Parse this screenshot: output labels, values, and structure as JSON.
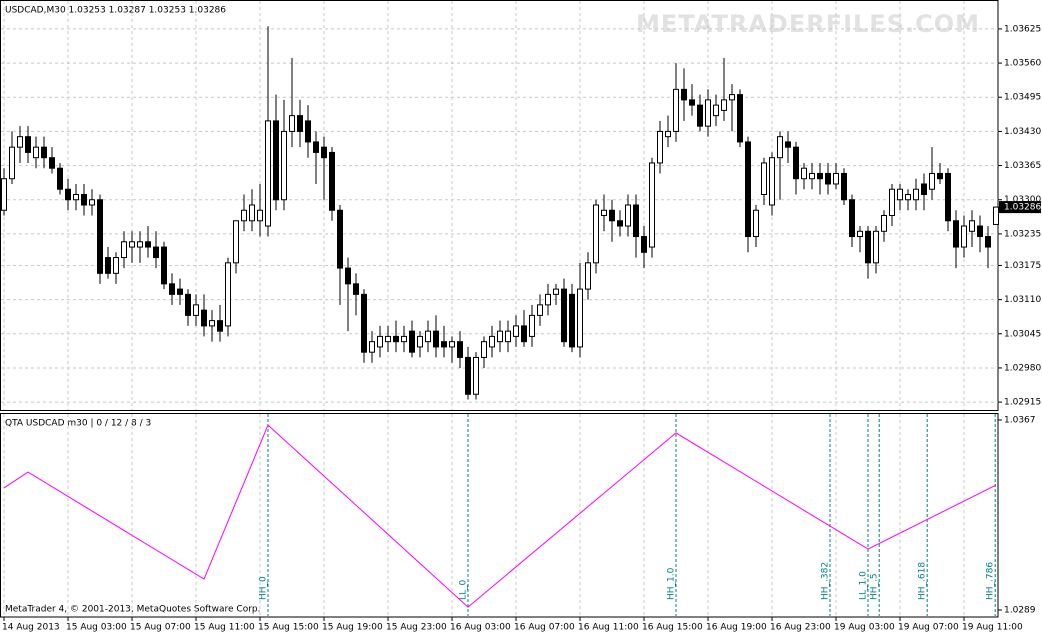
{
  "chart_data": [
    {
      "type": "candlestick",
      "title": "USDCAD,M30  1.03253 1.03287 1.03253 1.03286",
      "watermark": "METATRADERFILES.COM",
      "categories": [
        "14 Aug 2013",
        null,
        null,
        null,
        null,
        null,
        null,
        null,
        "15 Aug 03:00",
        null,
        null,
        null,
        null,
        null,
        null,
        null,
        "15 Aug 07:00",
        null,
        null,
        null,
        null,
        null,
        null,
        null,
        "15 Aug 11:00",
        null,
        null,
        null,
        null,
        null,
        null,
        null,
        "15 Aug 15:00",
        null,
        null,
        null,
        null,
        null,
        null,
        null,
        "15 Aug 19:00",
        null,
        null,
        null,
        null,
        null,
        null,
        null,
        "15 Aug 23:00",
        null,
        null,
        null,
        null,
        null,
        null,
        null,
        "16 Aug 03:00",
        null,
        null,
        null,
        null,
        null,
        null,
        null,
        "16 Aug 07:00",
        null,
        null,
        null,
        null,
        null,
        null,
        null,
        "16 Aug 11:00",
        null,
        null,
        null,
        null,
        null,
        null,
        null,
        "16 Aug 15:00",
        null,
        null,
        null,
        null,
        null,
        null,
        null,
        "16 Aug 19:00",
        null,
        null,
        null,
        null,
        null,
        null,
        null,
        "16 Aug 23:00",
        null,
        null,
        null,
        null,
        null,
        null,
        null,
        "19 Aug 03:00",
        null,
        null,
        null,
        null,
        null,
        null,
        null,
        "19 Aug 07:00",
        null,
        null,
        null,
        null,
        null,
        null,
        null,
        "19 Aug 11:00",
        null,
        null,
        null,
        null
      ],
      "ohlc": [
        [
          1.0328,
          1.0336,
          1.0327,
          1.0334
        ],
        [
          1.0334,
          1.0343,
          1.0333,
          1.034
        ],
        [
          1.034,
          1.0344,
          1.0337,
          1.0342
        ],
        [
          1.0342,
          1.0344,
          1.0337,
          1.0339
        ],
        [
          1.0338,
          1.0342,
          1.0336,
          1.034
        ],
        [
          1.034,
          1.0342,
          1.0336,
          1.0338
        ],
        [
          1.0338,
          1.034,
          1.0335,
          1.0336
        ],
        [
          1.0336,
          1.0337,
          1.0331,
          1.0332
        ],
        [
          1.0332,
          1.0334,
          1.0328,
          1.033
        ],
        [
          1.033,
          1.0333,
          1.0328,
          1.0331
        ],
        [
          1.0331,
          1.0333,
          1.0327,
          1.0329
        ],
        [
          1.0329,
          1.0332,
          1.0327,
          1.033
        ],
        [
          1.033,
          1.0331,
          1.0314,
          1.0316
        ],
        [
          1.0319,
          1.0321,
          1.0315,
          1.0316
        ],
        [
          1.0316,
          1.032,
          1.0314,
          1.0319
        ],
        [
          1.0319,
          1.0324,
          1.0317,
          1.0322
        ],
        [
          1.0321,
          1.0324,
          1.0318,
          1.0322
        ],
        [
          1.0321,
          1.0324,
          1.0318,
          1.0322
        ],
        [
          1.0322,
          1.0325,
          1.0319,
          1.0321
        ],
        [
          1.0321,
          1.0324,
          1.0317,
          1.0319
        ],
        [
          1.0321,
          1.0322,
          1.0313,
          1.0314
        ],
        [
          1.0314,
          1.0316,
          1.031,
          1.0312
        ],
        [
          1.0313,
          1.0315,
          1.031,
          1.0312
        ],
        [
          1.0312,
          1.0313,
          1.0306,
          1.0308
        ],
        [
          1.0308,
          1.0312,
          1.0306,
          1.031
        ],
        [
          1.0309,
          1.0312,
          1.0304,
          1.0306
        ],
        [
          1.0306,
          1.0309,
          1.0303,
          1.0307
        ],
        [
          1.0307,
          1.031,
          1.0303,
          1.0305
        ],
        [
          1.0306,
          1.0319,
          1.0304,
          1.0318
        ],
        [
          1.0318,
          1.0326,
          1.0316,
          1.0326
        ],
        [
          1.0326,
          1.0331,
          1.0324,
          1.0328
        ],
        [
          1.0326,
          1.0332,
          1.0324,
          1.0329
        ],
        [
          1.0326,
          1.0333,
          1.0323,
          1.0328
        ],
        [
          1.0325,
          1.0363,
          1.0323,
          1.0345
        ],
        [
          1.0345,
          1.035,
          1.0328,
          1.033
        ],
        [
          1.033,
          1.0349,
          1.0328,
          1.0343
        ],
        [
          1.0343,
          1.0357,
          1.034,
          1.0346
        ],
        [
          1.0346,
          1.0349,
          1.034,
          1.0343
        ],
        [
          1.0345,
          1.0348,
          1.0338,
          1.0341
        ],
        [
          1.0341,
          1.0343,
          1.0333,
          1.0339
        ],
        [
          1.034,
          1.0342,
          1.033,
          1.0338
        ],
        [
          1.0339,
          1.034,
          1.0326,
          1.0328
        ],
        [
          1.0328,
          1.0329,
          1.031,
          1.0317
        ],
        [
          1.0317,
          1.0319,
          1.0305,
          1.0314
        ],
        [
          1.0314,
          1.0316,
          1.0308,
          1.0312
        ],
        [
          1.0312,
          1.0313,
          1.0299,
          1.0301
        ],
        [
          1.0301,
          1.0305,
          1.0299,
          1.0303
        ],
        [
          1.0302,
          1.0306,
          1.03,
          1.0304
        ],
        [
          1.0303,
          1.0306,
          1.0301,
          1.0304
        ],
        [
          1.0304,
          1.0307,
          1.0301,
          1.0303
        ],
        [
          1.0303,
          1.0306,
          1.0301,
          1.0304
        ],
        [
          1.0305,
          1.0307,
          1.03,
          1.0301
        ],
        [
          1.0302,
          1.0305,
          1.03,
          1.0304
        ],
        [
          1.0303,
          1.0307,
          1.0301,
          1.0305
        ],
        [
          1.0305,
          1.0308,
          1.03,
          1.0302
        ],
        [
          1.0303,
          1.0306,
          1.03,
          1.0302
        ],
        [
          1.0302,
          1.0304,
          1.0299,
          1.0303
        ],
        [
          1.0303,
          1.0305,
          1.0298,
          1.03
        ],
        [
          1.03,
          1.0302,
          1.0292,
          1.0293
        ],
        [
          1.0293,
          1.0301,
          1.0292,
          1.03
        ],
        [
          1.03,
          1.0304,
          1.0298,
          1.0303
        ],
        [
          1.0302,
          1.0306,
          1.03,
          1.0304
        ],
        [
          1.0303,
          1.0307,
          1.0301,
          1.0305
        ],
        [
          1.0303,
          1.0307,
          1.0301,
          1.0305
        ],
        [
          1.0304,
          1.0308,
          1.0302,
          1.0306
        ],
        [
          1.0306,
          1.0309,
          1.0302,
          1.0303
        ],
        [
          1.0304,
          1.031,
          1.0302,
          1.0308
        ],
        [
          1.0308,
          1.0312,
          1.0306,
          1.031
        ],
        [
          1.031,
          1.0314,
          1.0308,
          1.0312
        ],
        [
          1.0312,
          1.0314,
          1.031,
          1.0313
        ],
        [
          1.0313,
          1.0315,
          1.0302,
          1.0303
        ],
        [
          1.0312,
          1.0314,
          1.0301,
          1.0302
        ],
        [
          1.0302,
          1.0318,
          1.03,
          1.0313
        ],
        [
          1.0313,
          1.032,
          1.0311,
          1.0318
        ],
        [
          1.0318,
          1.033,
          1.0316,
          1.0329
        ],
        [
          1.0327,
          1.0331,
          1.0324,
          1.0328
        ],
        [
          1.0328,
          1.033,
          1.0322,
          1.0326
        ],
        [
          1.0326,
          1.0328,
          1.0323,
          1.0325
        ],
        [
          1.0325,
          1.0331,
          1.0323,
          1.0329
        ],
        [
          1.0329,
          1.0331,
          1.0319,
          1.0323
        ],
        [
          1.0323,
          1.0325,
          1.0317,
          1.032
        ],
        [
          1.0321,
          1.0338,
          1.0319,
          1.0337
        ],
        [
          1.0337,
          1.0345,
          1.0335,
          1.0343
        ],
        [
          1.0342,
          1.0346,
          1.034,
          1.0343
        ],
        [
          1.0343,
          1.0356,
          1.0341,
          1.0351
        ],
        [
          1.0351,
          1.0355,
          1.0345,
          1.0349
        ],
        [
          1.0349,
          1.0352,
          1.0346,
          1.0348
        ],
        [
          1.0348,
          1.035,
          1.0343,
          1.0344
        ],
        [
          1.0344,
          1.0351,
          1.0342,
          1.0349
        ],
        [
          1.0346,
          1.035,
          1.0344,
          1.0348
        ],
        [
          1.0347,
          1.0357,
          1.0345,
          1.0349
        ],
        [
          1.0349,
          1.0352,
          1.0343,
          1.035
        ],
        [
          1.035,
          1.0351,
          1.034,
          1.0341
        ],
        [
          1.0341,
          1.0342,
          1.032,
          1.0323
        ],
        [
          1.0323,
          1.0329,
          1.0321,
          1.0328
        ],
        [
          1.0331,
          1.0338,
          1.0329,
          1.0337
        ],
        [
          1.0329,
          1.0339,
          1.0327,
          1.0338
        ],
        [
          1.0338,
          1.0343,
          1.033,
          1.0342
        ],
        [
          1.0341,
          1.0343,
          1.0337,
          1.034
        ],
        [
          1.034,
          1.0341,
          1.0331,
          1.0334
        ],
        [
          1.0334,
          1.0337,
          1.0332,
          1.0336
        ],
        [
          1.0334,
          1.0337,
          1.0332,
          1.0335
        ],
        [
          1.0335,
          1.0337,
          1.0331,
          1.0334
        ],
        [
          1.0335,
          1.0337,
          1.0331,
          1.0333
        ],
        [
          1.0333,
          1.0337,
          1.0332,
          1.0335
        ],
        [
          1.0335,
          1.0336,
          1.0329,
          1.033
        ],
        [
          1.033,
          1.0331,
          1.0321,
          1.0323
        ],
        [
          1.0323,
          1.0325,
          1.032,
          1.0324
        ],
        [
          1.0324,
          1.0325,
          1.0315,
          1.0318
        ],
        [
          1.0318,
          1.0325,
          1.0316,
          1.0324
        ],
        [
          1.0324,
          1.0328,
          1.0322,
          1.0327
        ],
        [
          1.0327,
          1.0333,
          1.0325,
          1.0332
        ],
        [
          1.033,
          1.0333,
          1.0328,
          1.0332
        ],
        [
          1.033,
          1.0332,
          1.0328,
          1.0331
        ],
        [
          1.033,
          1.0334,
          1.0328,
          1.0332
        ],
        [
          1.0333,
          1.0335,
          1.0328,
          1.0331
        ],
        [
          1.0332,
          1.034,
          1.033,
          1.0335
        ],
        [
          1.0335,
          1.0337,
          1.0333,
          1.0334
        ],
        [
          1.0335,
          1.0336,
          1.0324,
          1.0326
        ],
        [
          1.0326,
          1.0328,
          1.0317,
          1.0321
        ],
        [
          1.0321,
          1.0327,
          1.0319,
          1.0325
        ],
        [
          1.0324,
          1.0328,
          1.0321,
          1.0326
        ],
        [
          1.0325,
          1.0327,
          1.032,
          1.0323
        ],
        [
          1.0323,
          1.0325,
          1.0317,
          1.0321
        ],
        [
          1.03253,
          1.03287,
          1.03253,
          1.03286
        ]
      ],
      "current_price": 1.03286,
      "ylim": [
        1.029,
        1.0368
      ],
      "yticks": [
        1.03625,
        {
          "value": 1.0356,
          "label": "1.03560"
        },
        1.03495,
        {
          "value": 1.0343,
          "label": "1.03430"
        },
        1.03365,
        {
          "value": 1.033,
          "label": "1.03300"
        },
        1.03235,
        1.03175,
        {
          "value": 1.0311,
          "label": "1.03110"
        },
        1.03045,
        {
          "value": 1.0298,
          "label": "1.02980"
        },
        1.02915
      ],
      "grid": true,
      "up_color": "#ffffff",
      "down_color": "#000000"
    },
    {
      "type": "line",
      "title": "QTA USDCAD m30 | 0 / 12 / 8 / 3",
      "footer": "MetaTrader 4, © 2001-2013, MetaQuotes Software Corp.",
      "x": [
        0,
        3,
        25,
        33,
        58,
        84,
        108,
        124
      ],
      "values": [
        1.03391,
        1.03456,
        1.03017,
        1.03649,
        1.02902,
        1.03617,
        1.0314,
        1.03403
      ],
      "color": "#ff00ff",
      "markers": [
        {
          "label": "HH_0",
          "x": 33
        },
        {
          "label": "LL_0",
          "x": 58
        },
        {
          "label": "HH_1.0",
          "x": 84
        },
        {
          "label": "HH_.382",
          "x": 103.25
        },
        {
          "label": "LL_1.0",
          "x": 108
        },
        {
          "label": "HH_.5",
          "x": 109.4
        },
        {
          "label": "HH_.618",
          "x": 115.4
        },
        {
          "label": "HH_.786",
          "x": 123.9
        }
      ],
      "marker_color": "#008080",
      "ylim": [
        1.0289,
        1.0367
      ],
      "yticks": [
        1.0367,
        1.0289
      ]
    }
  ]
}
